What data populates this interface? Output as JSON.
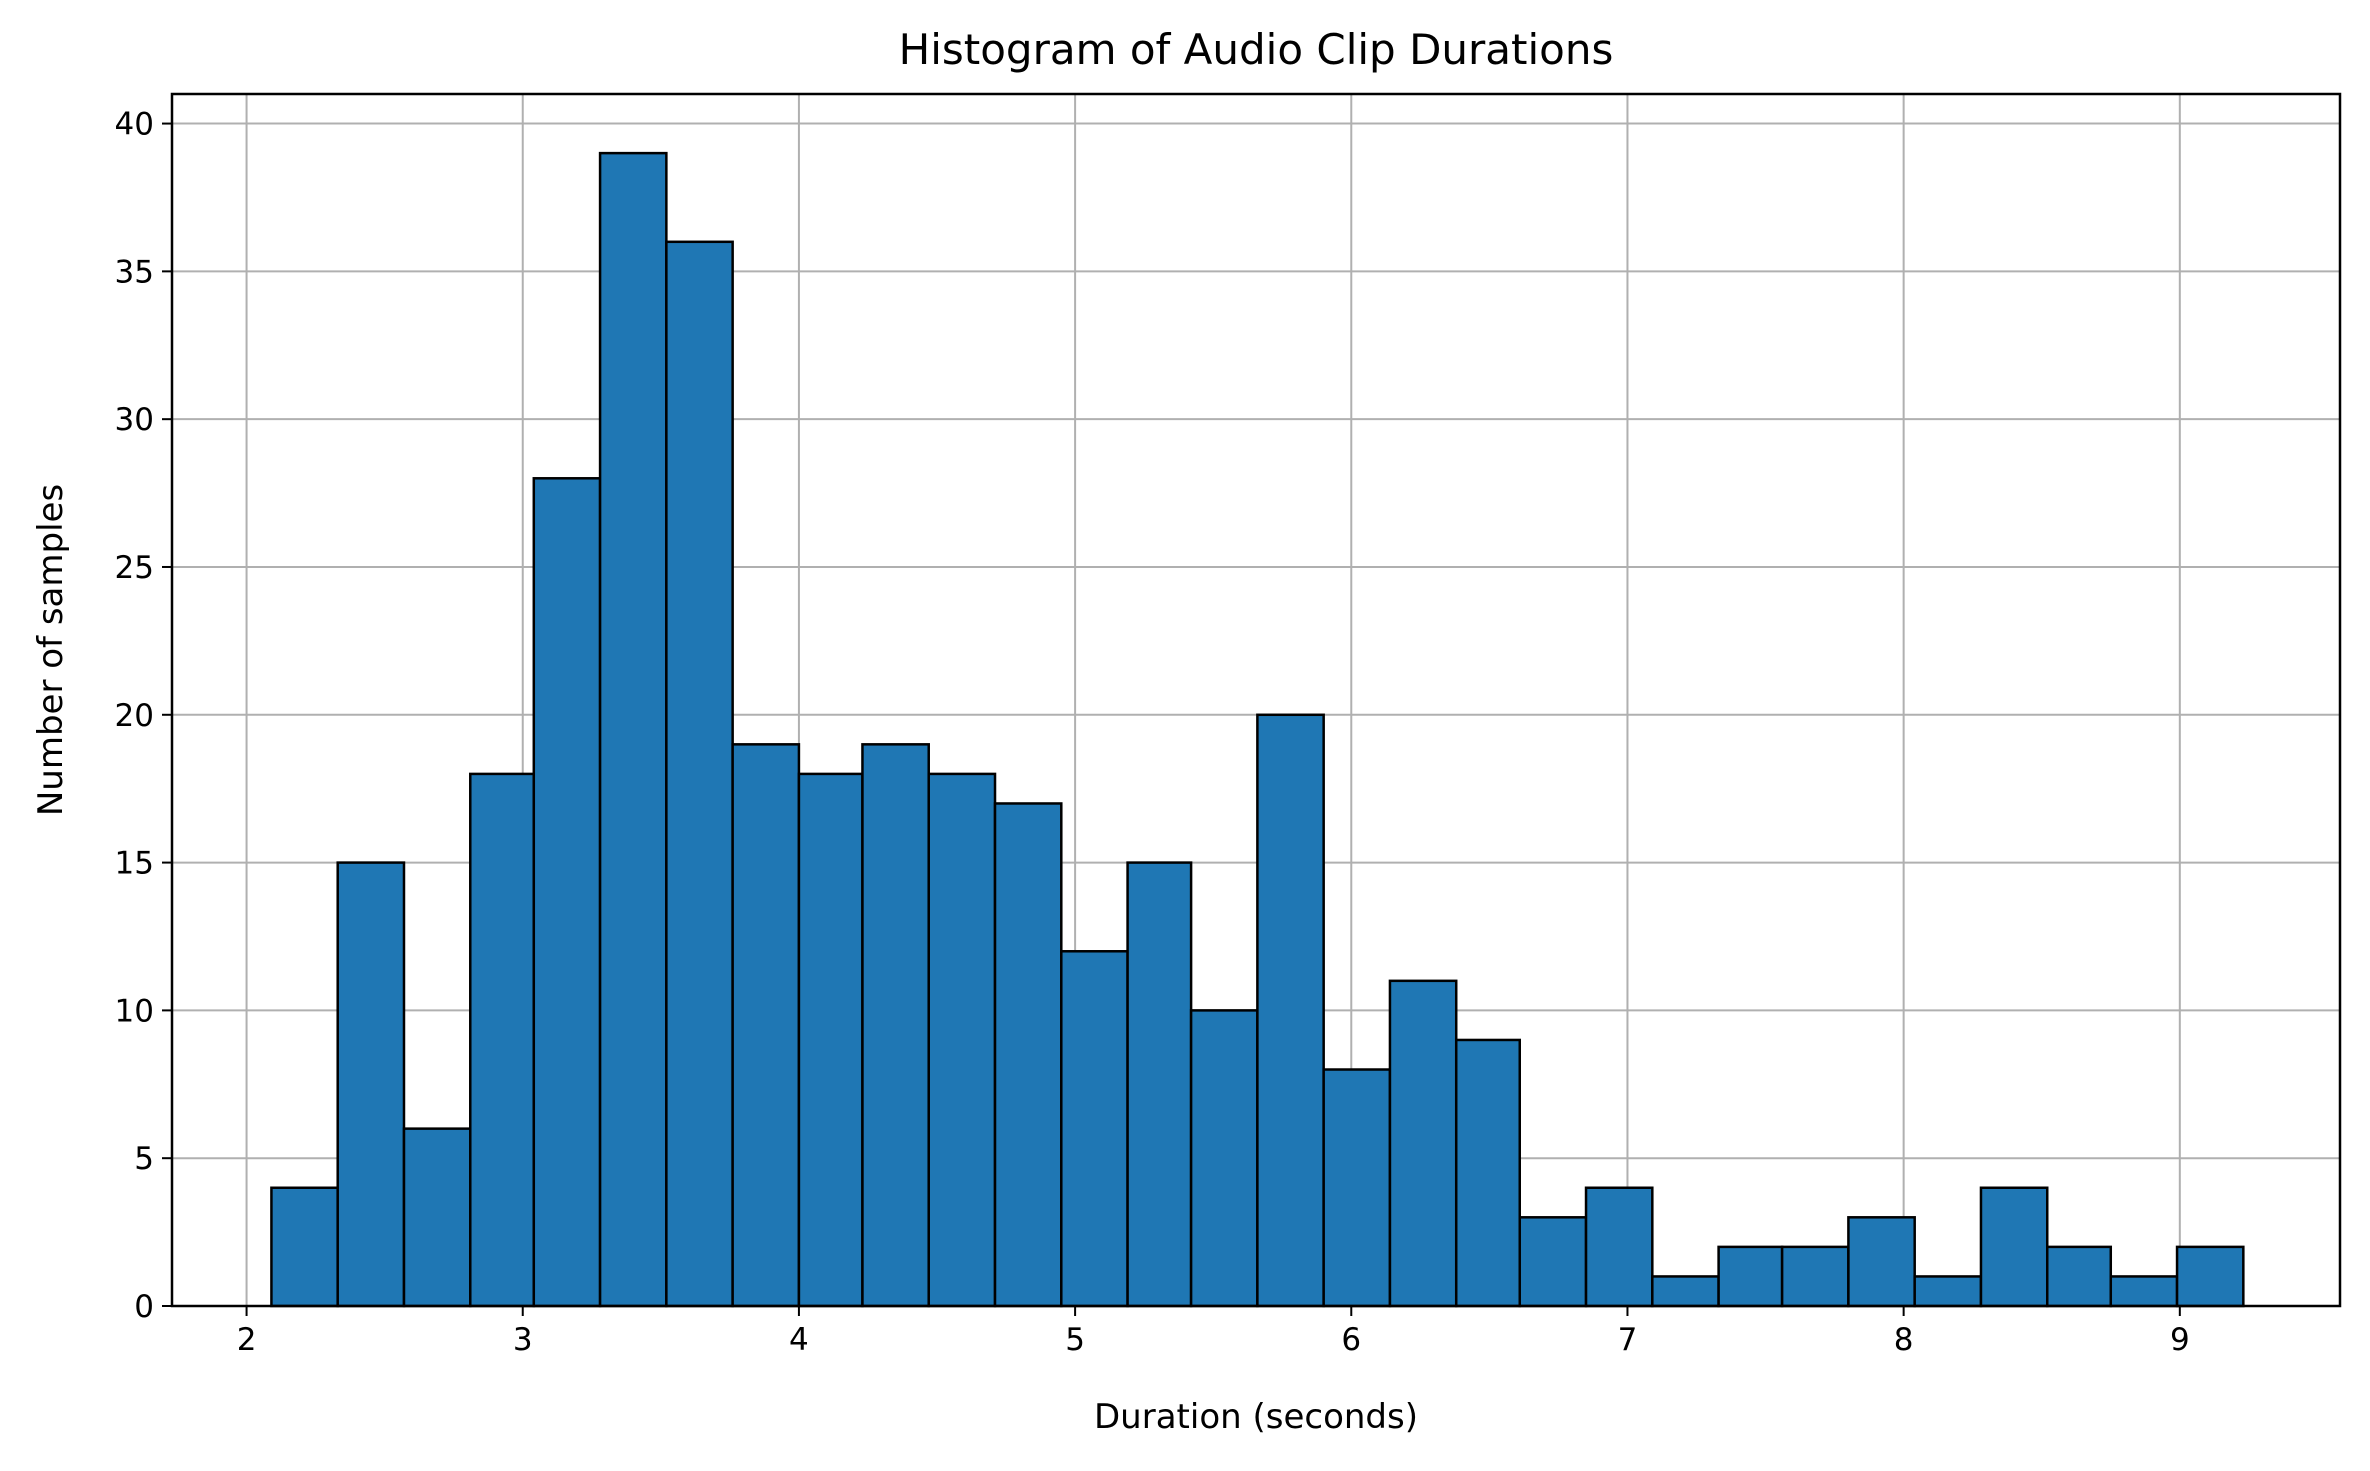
{
  "chart_data": {
    "type": "bar",
    "title": "Histogram of Audio Clip Durations",
    "xlabel": "Duration (seconds)",
    "ylabel": "Number of samples",
    "xlim": [
      1.73,
      9.58
    ],
    "ylim": [
      0,
      41
    ],
    "xticks": [
      "2",
      "3",
      "4",
      "5",
      "6",
      "7",
      "8",
      "9"
    ],
    "yticks": [
      "0",
      "5",
      "10",
      "15",
      "20",
      "25",
      "30",
      "35",
      "40"
    ],
    "grid": true,
    "bar_color": "#1f77b4",
    "edge_color": "#000000",
    "bins": [
      {
        "x0": 2.09,
        "x1": 2.33,
        "count": 4
      },
      {
        "x0": 2.33,
        "x1": 2.57,
        "count": 15
      },
      {
        "x0": 2.57,
        "x1": 2.81,
        "count": 6
      },
      {
        "x0": 2.81,
        "x1": 3.04,
        "count": 18
      },
      {
        "x0": 3.04,
        "x1": 3.28,
        "count": 28
      },
      {
        "x0": 3.28,
        "x1": 3.52,
        "count": 39
      },
      {
        "x0": 3.52,
        "x1": 3.76,
        "count": 36
      },
      {
        "x0": 3.76,
        "x1": 4.0,
        "count": 19
      },
      {
        "x0": 4.0,
        "x1": 4.23,
        "count": 18
      },
      {
        "x0": 4.23,
        "x1": 4.47,
        "count": 19
      },
      {
        "x0": 4.47,
        "x1": 4.71,
        "count": 18
      },
      {
        "x0": 4.71,
        "x1": 4.95,
        "count": 17
      },
      {
        "x0": 4.95,
        "x1": 5.19,
        "count": 12
      },
      {
        "x0": 5.19,
        "x1": 5.42,
        "count": 15
      },
      {
        "x0": 5.42,
        "x1": 5.66,
        "count": 10
      },
      {
        "x0": 5.66,
        "x1": 5.9,
        "count": 20
      },
      {
        "x0": 5.9,
        "x1": 6.14,
        "count": 8
      },
      {
        "x0": 6.14,
        "x1": 6.38,
        "count": 11
      },
      {
        "x0": 6.38,
        "x1": 6.61,
        "count": 9
      },
      {
        "x0": 6.61,
        "x1": 6.85,
        "count": 3
      },
      {
        "x0": 6.85,
        "x1": 7.09,
        "count": 4
      },
      {
        "x0": 7.09,
        "x1": 7.33,
        "count": 1
      },
      {
        "x0": 7.33,
        "x1": 7.56,
        "count": 2
      },
      {
        "x0": 7.56,
        "x1": 7.8,
        "count": 2
      },
      {
        "x0": 7.8,
        "x1": 8.04,
        "count": 3
      },
      {
        "x0": 8.04,
        "x1": 8.28,
        "count": 1
      },
      {
        "x0": 8.28,
        "x1": 8.52,
        "count": 4
      },
      {
        "x0": 8.52,
        "x1": 8.75,
        "count": 2
      },
      {
        "x0": 8.75,
        "x1": 8.99,
        "count": 1
      },
      {
        "x0": 8.99,
        "x1": 9.23,
        "count": 2
      }
    ]
  }
}
